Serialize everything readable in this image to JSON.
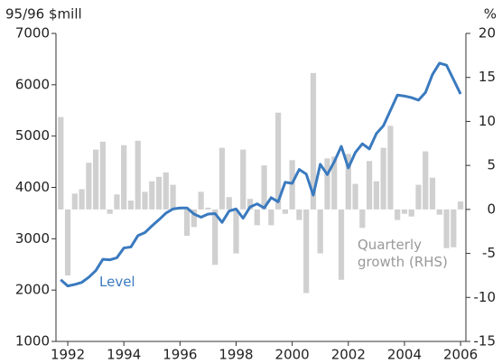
{
  "chart_data": {
    "type": "bar_line",
    "y_label": "95/96 $mill",
    "y2_label": "%",
    "x": [
      1991.75,
      1992,
      1992.25,
      1992.5,
      1992.75,
      1993,
      1993.25,
      1993.5,
      1993.75,
      1994,
      1994.25,
      1994.5,
      1994.75,
      1995,
      1995.25,
      1995.5,
      1995.75,
      1996,
      1996.25,
      1996.5,
      1996.75,
      1997,
      1997.25,
      1997.5,
      1997.75,
      1998,
      1998.25,
      1998.5,
      1998.75,
      1999,
      1999.25,
      1999.5,
      1999.75,
      2000,
      2000.25,
      2000.5,
      2000.75,
      2001,
      2001.25,
      2001.5,
      2001.75,
      2002,
      2002.25,
      2002.5,
      2002.75,
      2003,
      2003.25,
      2003.5,
      2003.75,
      2004,
      2004.25,
      2004.5,
      2004.75,
      2005,
      2005.25,
      2005.5,
      2005.75,
      2006
    ],
    "series": [
      {
        "name": "Level",
        "color": "#3a7abf",
        "kind": "line",
        "axis": "y",
        "values": [
          2200,
          2080,
          2110,
          2150,
          2250,
          2380,
          2600,
          2590,
          2630,
          2820,
          2840,
          3060,
          3120,
          3250,
          3370,
          3500,
          3580,
          3600,
          3600,
          3480,
          3420,
          3480,
          3490,
          3320,
          3540,
          3580,
          3400,
          3620,
          3680,
          3600,
          3800,
          3720,
          4100,
          4080,
          4350,
          4260,
          3850,
          4450,
          4250,
          4500,
          4800,
          4380,
          4680,
          4850,
          4750,
          5050,
          5200,
          5500,
          5800,
          5780,
          5750,
          5700,
          5850,
          6200,
          6420,
          6380,
          6100,
          5820
        ]
      },
      {
        "name": "Quarterly growth (RHS)",
        "color": "#d0d0d0",
        "kind": "bar",
        "axis": "y2",
        "values": [
          10.5,
          -7.5,
          1.8,
          2.3,
          5.3,
          6.8,
          7.7,
          -0.5,
          1.7,
          7.3,
          1.0,
          7.8,
          2.0,
          3.2,
          3.7,
          4.2,
          2.8,
          0.1,
          -3.0,
          -2.0,
          2.0,
          0.2,
          -6.3,
          7.0,
          1.4,
          -5.0,
          6.8,
          1.2,
          -1.8,
          5.0,
          -1.8,
          11.0,
          -0.5,
          5.6,
          -1.2,
          -9.5,
          15.5,
          -5.0,
          5.8,
          6.0,
          -8.0,
          6.3,
          2.9,
          -2.1,
          5.5,
          3.2,
          7.0,
          9.5,
          -1.2,
          -0.5,
          -0.8,
          2.8,
          6.6,
          3.6,
          -0.6,
          -4.4,
          -4.3,
          0.9
        ]
      }
    ],
    "xlim": [
      1991.58,
      2006.19
    ],
    "xticks": [
      1992,
      1994,
      1996,
      1998,
      2000,
      2002,
      2004,
      2006
    ],
    "ylim": [
      1000,
      7000
    ],
    "yticks": [
      1000,
      2000,
      3000,
      4000,
      5000,
      6000,
      7000
    ],
    "y2lim": [
      -15,
      20
    ],
    "y2ticks": [
      -15,
      -10,
      -5,
      0,
      5,
      10,
      15,
      20
    ]
  }
}
